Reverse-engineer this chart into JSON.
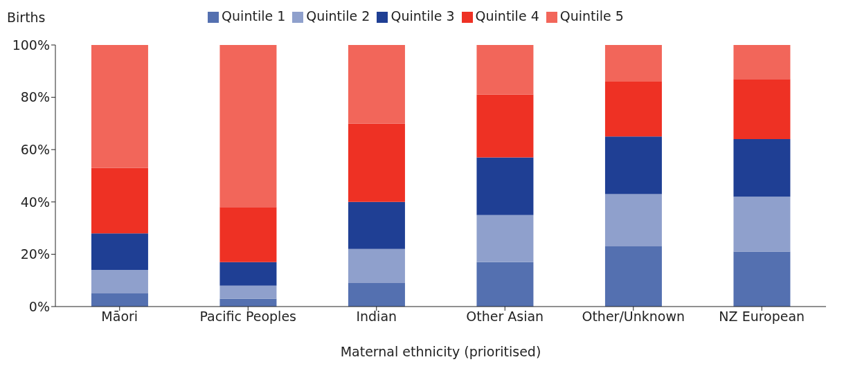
{
  "chart_data": {
    "type": "bar",
    "stacked": true,
    "ylabel": "Births",
    "xlabel": "Maternal ethnicity (prioritised)",
    "categories": [
      "Māori",
      "Pacific Peoples",
      "Indian",
      "Other Asian",
      "Other/Unknown",
      "NZ European"
    ],
    "series": [
      {
        "name": "Quintile 1",
        "color": "#5470b0",
        "values": [
          5,
          3,
          9,
          17,
          23,
          21
        ]
      },
      {
        "name": "Quintile 2",
        "color": "#8fa0cc",
        "values": [
          9,
          5,
          13,
          18,
          20,
          21
        ]
      },
      {
        "name": "Quintile 3",
        "color": "#1f3f94",
        "values": [
          14,
          9,
          18,
          22,
          22,
          22
        ]
      },
      {
        "name": "Quintile 4",
        "color": "#ee3124",
        "values": [
          25,
          21,
          30,
          24,
          21,
          23
        ]
      },
      {
        "name": "Quintile 5",
        "color": "#f2665a",
        "values": [
          47,
          62,
          30,
          19,
          14,
          13
        ]
      }
    ],
    "ylim": [
      0,
      100
    ],
    "yticks": [
      {
        "value": 0,
        "label": "0%"
      },
      {
        "value": 20,
        "label": "20%"
      },
      {
        "value": 40,
        "label": "40%"
      },
      {
        "value": 60,
        "label": "60%"
      },
      {
        "value": 80,
        "label": "80%"
      },
      {
        "value": 100,
        "label": "100%"
      }
    ],
    "grid": false,
    "legend": "top"
  }
}
